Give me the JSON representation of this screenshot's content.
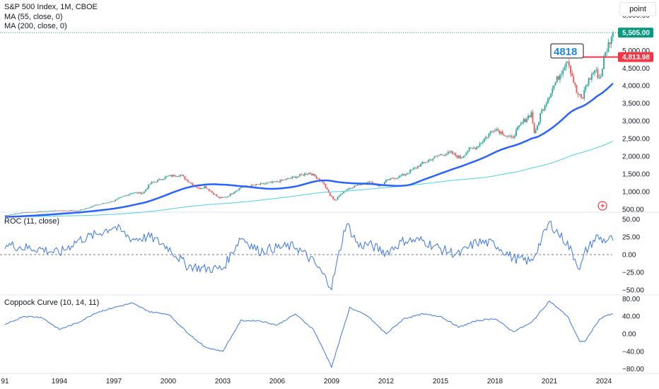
{
  "legend": {
    "main": "S&P 500 Index, 1M, CBOE",
    "ma55": "MA (55, close, 0)",
    "ma200": "MA (200, close, 0)",
    "roc": "ROC (11, close)",
    "coppock": "Coppock Curve (10, 14, 11)"
  },
  "scale_button": "point",
  "badges": {
    "current_price": "5,505.00",
    "level_price": "4,813.98",
    "annotation": "4818"
  },
  "colors": {
    "up": "#26a69a",
    "down": "#ef5350",
    "ma55": "#2962ff",
    "ma200": "#4dd0e1",
    "indicator": "#3a75e8",
    "price_badge": "#089981",
    "level_badge": "#f23645",
    "annotation": "#1e88e5"
  },
  "chart_data": [
    {
      "type": "candlestick",
      "title": "S&P 500 Index, 1M, CBOE",
      "ylim": [
        450,
        5800
      ],
      "y_ticks": [
        "5,000.00",
        "4,500.00",
        "4,000.00",
        "3,500.00",
        "3,000.00",
        "2,500.00",
        "2,000.00",
        "1,500.00",
        "1,000.00",
        "500.00"
      ],
      "x_ticks": [
        "91",
        "1994",
        "1997",
        "2000",
        "2003",
        "2006",
        "2009",
        "2012",
        "2015",
        "2018",
        "2021",
        "2024"
      ],
      "close_anchors": [
        [
          1991.0,
          330
        ],
        [
          1992.0,
          410
        ],
        [
          1993.0,
          435
        ],
        [
          1994.0,
          466
        ],
        [
          1995.0,
          460
        ],
        [
          1996.0,
          615
        ],
        [
          1997.0,
          740
        ],
        [
          1998.0,
          970
        ],
        [
          1998.6,
          960
        ],
        [
          1999.0,
          1230
        ],
        [
          2000.0,
          1440
        ],
        [
          2000.7,
          1480
        ],
        [
          2001.0,
          1330
        ],
        [
          2001.7,
          1080
        ],
        [
          2002.0,
          1150
        ],
        [
          2002.8,
          820
        ],
        [
          2003.2,
          850
        ],
        [
          2004.0,
          1130
        ],
        [
          2005.0,
          1200
        ],
        [
          2006.0,
          1280
        ],
        [
          2007.0,
          1420
        ],
        [
          2007.8,
          1540
        ],
        [
          2008.5,
          1280
        ],
        [
          2008.9,
          900
        ],
        [
          2009.2,
          740
        ],
        [
          2009.5,
          950
        ],
        [
          2010.0,
          1110
        ],
        [
          2011.0,
          1290
        ],
        [
          2011.7,
          1150
        ],
        [
          2012.0,
          1310
        ],
        [
          2013.0,
          1480
        ],
        [
          2014.0,
          1800
        ],
        [
          2015.0,
          2050
        ],
        [
          2015.6,
          2100
        ],
        [
          2016.1,
          1950
        ],
        [
          2016.5,
          2170
        ],
        [
          2017.0,
          2280
        ],
        [
          2018.0,
          2800
        ],
        [
          2018.9,
          2500
        ],
        [
          2019.5,
          2950
        ],
        [
          2020.0,
          3230
        ],
        [
          2020.2,
          2580
        ],
        [
          2020.5,
          3200
        ],
        [
          2021.0,
          3750
        ],
        [
          2022.0,
          4770
        ],
        [
          2022.5,
          3800
        ],
        [
          2022.8,
          3600
        ],
        [
          2023.0,
          4000
        ],
        [
          2023.5,
          4450
        ],
        [
          2023.8,
          4190
        ],
        [
          2024.0,
          4770
        ],
        [
          2024.3,
          5250
        ],
        [
          2024.5,
          5505
        ]
      ]
    },
    {
      "type": "line",
      "title": "ROC (11, close)",
      "ylim": [
        -55,
        55
      ],
      "y_ticks": [
        "50.00",
        "25.00",
        "0.00",
        "−25.00",
        "−50.00"
      ],
      "values_anchors": [
        [
          1991.0,
          15
        ],
        [
          1992.0,
          10
        ],
        [
          1993.0,
          8
        ],
        [
          1994.0,
          2
        ],
        [
          1995.0,
          20
        ],
        [
          1996.0,
          28
        ],
        [
          1997.0,
          40
        ],
        [
          1998.0,
          22
        ],
        [
          1999.0,
          25
        ],
        [
          2000.0,
          10
        ],
        [
          2001.0,
          -15
        ],
        [
          2002.0,
          -20
        ],
        [
          2003.0,
          -20
        ],
        [
          2004.0,
          25
        ],
        [
          2005.0,
          5
        ],
        [
          2006.0,
          10
        ],
        [
          2007.0,
          12
        ],
        [
          2008.0,
          -10
        ],
        [
          2009.0,
          -45
        ],
        [
          2009.8,
          45
        ],
        [
          2010.5,
          12
        ],
        [
          2011.0,
          15
        ],
        [
          2012.0,
          3
        ],
        [
          2013.0,
          20
        ],
        [
          2014.0,
          20
        ],
        [
          2015.0,
          8
        ],
        [
          2016.0,
          0
        ],
        [
          2017.0,
          18
        ],
        [
          2018.0,
          15
        ],
        [
          2019.0,
          -5
        ],
        [
          2020.0,
          -10
        ],
        [
          2021.0,
          45
        ],
        [
          2022.0,
          15
        ],
        [
          2022.7,
          -20
        ],
        [
          2023.0,
          5
        ],
        [
          2023.6,
          25
        ],
        [
          2024.0,
          20
        ],
        [
          2024.5,
          22
        ]
      ]
    },
    {
      "type": "line",
      "title": "Coppock Curve (10, 14, 11)",
      "ylim": [
        -90,
        90
      ],
      "y_ticks": [
        "80.00",
        "40.00",
        "0.00",
        "−40.00",
        "−80.00"
      ],
      "values_anchors": [
        [
          1991.0,
          20
        ],
        [
          1992.0,
          40
        ],
        [
          1993.0,
          38
        ],
        [
          1994.0,
          10
        ],
        [
          1995.0,
          25
        ],
        [
          1996.0,
          48
        ],
        [
          1997.0,
          60
        ],
        [
          1998.0,
          70
        ],
        [
          1999.0,
          50
        ],
        [
          2000.0,
          45
        ],
        [
          2001.0,
          5
        ],
        [
          2002.0,
          -30
        ],
        [
          2003.0,
          -40
        ],
        [
          2004.0,
          30
        ],
        [
          2005.0,
          30
        ],
        [
          2006.0,
          20
        ],
        [
          2007.0,
          45
        ],
        [
          2008.0,
          10
        ],
        [
          2009.0,
          -75
        ],
        [
          2010.0,
          60
        ],
        [
          2011.0,
          40
        ],
        [
          2012.0,
          0
        ],
        [
          2013.0,
          35
        ],
        [
          2014.0,
          45
        ],
        [
          2015.0,
          40
        ],
        [
          2016.0,
          15
        ],
        [
          2017.0,
          30
        ],
        [
          2018.0,
          35
        ],
        [
          2019.0,
          5
        ],
        [
          2020.0,
          25
        ],
        [
          2021.0,
          75
        ],
        [
          2022.0,
          40
        ],
        [
          2022.7,
          -20
        ],
        [
          2023.0,
          -15
        ],
        [
          2023.7,
          30
        ],
        [
          2024.0,
          40
        ],
        [
          2024.5,
          45
        ]
      ]
    }
  ]
}
